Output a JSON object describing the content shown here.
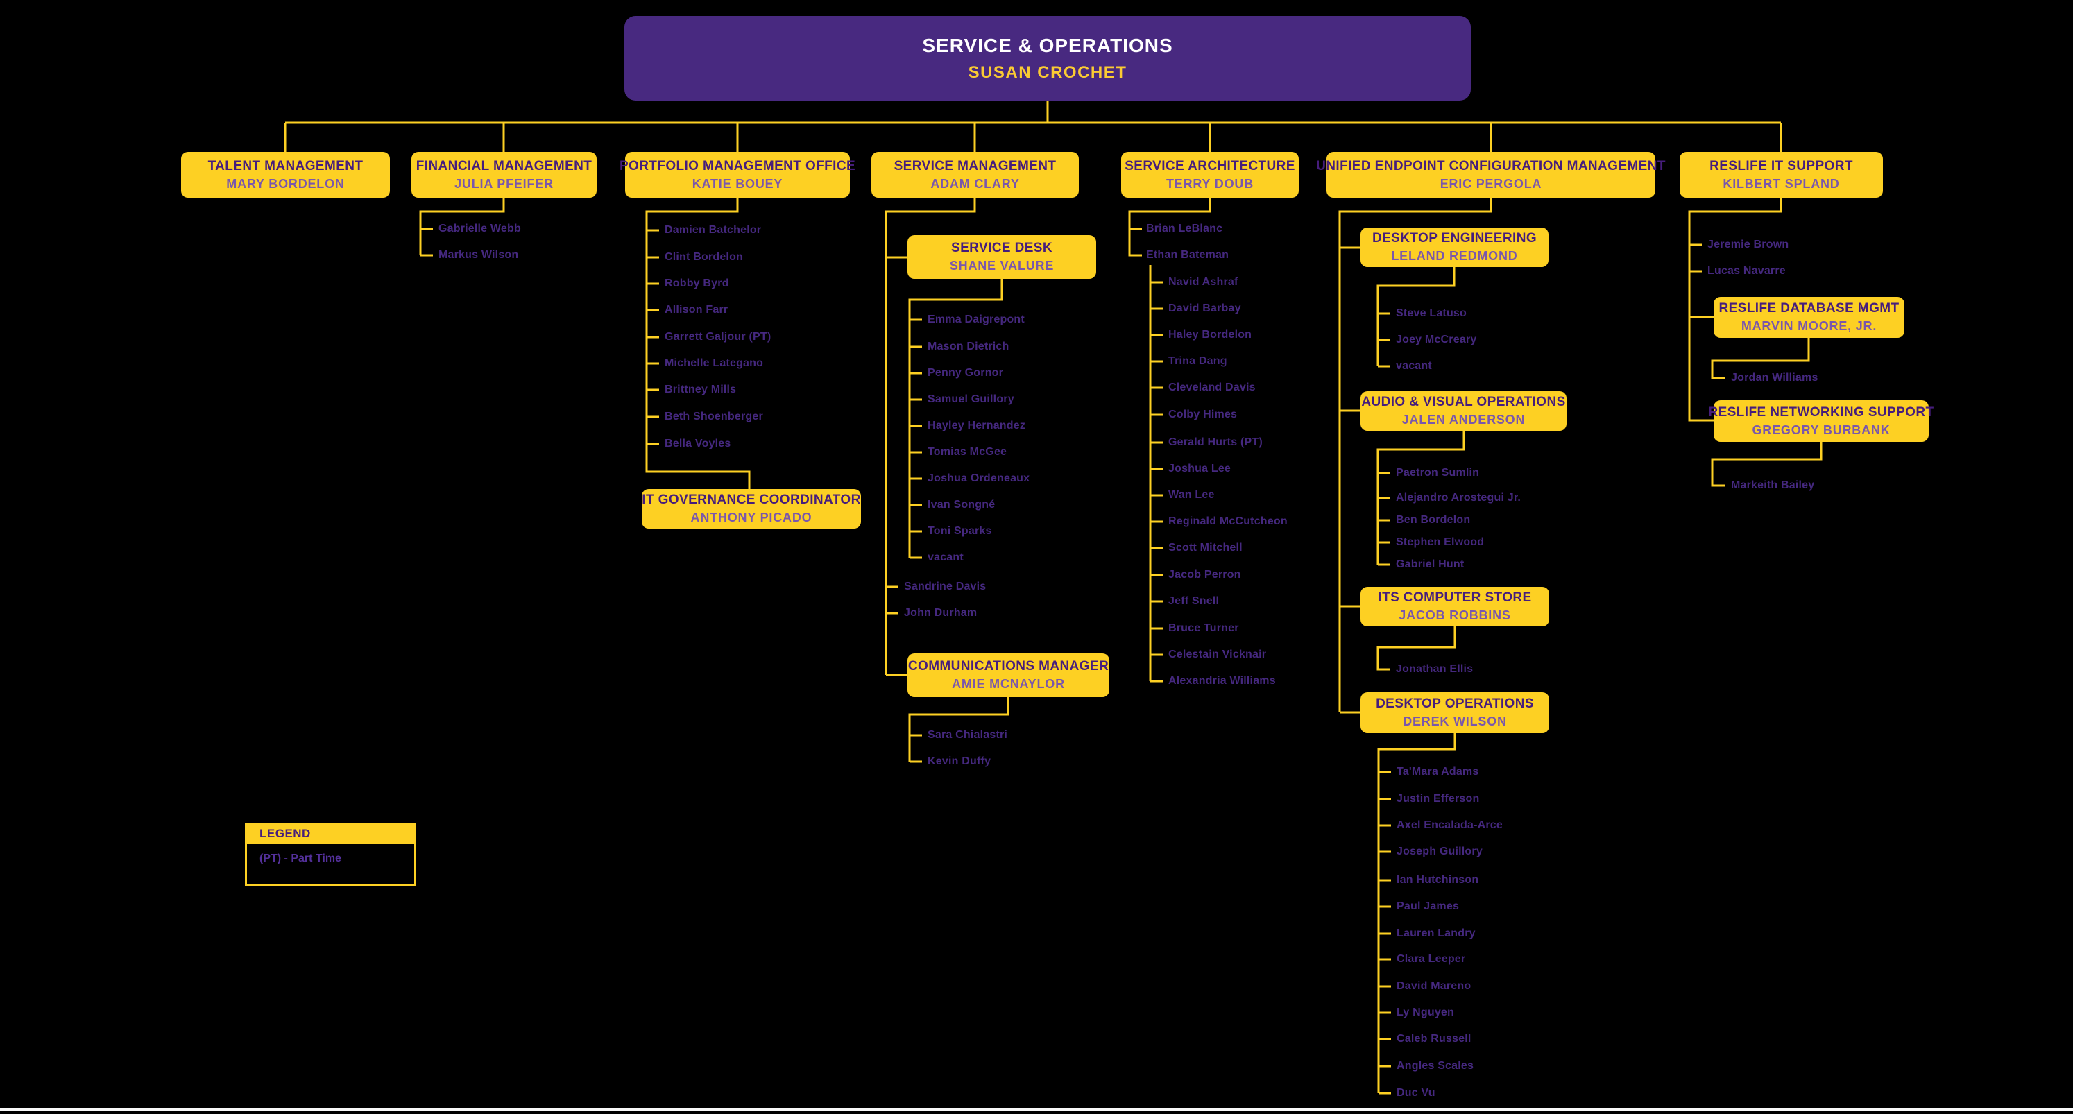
{
  "colors": {
    "background": "#000000",
    "gold": "#FDD023",
    "root_purple": "#482980",
    "box_title_purple": "#461D7C",
    "box_manager_purple": "#7A57AC",
    "staff_name_purple": "#45287F",
    "root_title_white": "#FFFFFF",
    "root_manager_gold": "#FBCB33"
  },
  "root": {
    "title": "SERVICE & OPERATIONS",
    "manager": "SUSAN CROCHET"
  },
  "legend": {
    "title": "LEGEND",
    "items": [
      "(PT) - Part Time"
    ]
  },
  "units": {
    "talent": {
      "title": "TALENT MANAGEMENT",
      "manager": "MARY BORDELON",
      "staff": []
    },
    "financial": {
      "title": "FINANCIAL MANAGEMENT",
      "manager": "JULIA PFEIFER",
      "staff": [
        "Gabrielle Webb",
        "Markus Wilson"
      ]
    },
    "portfolio": {
      "title": "PORTFOLIO MANAGEMENT OFFICE",
      "manager": "KATIE BOUEY",
      "staff": [
        "Damien Batchelor",
        "Clint Bordelon",
        "Robby Byrd",
        "Allison Farr",
        "Garrett Galjour (PT)",
        "Michelle Lategano",
        "Brittney Mills",
        "Beth Shoenberger",
        "Bella Voyles"
      ]
    },
    "it_governance": {
      "title": "IT GOVERNANCE COORDINATOR",
      "manager": "ANTHONY PICADO",
      "staff": []
    },
    "service_mgmt": {
      "title": "SERVICE MANAGEMENT",
      "manager": "ADAM CLARY",
      "staff": [
        "Sandrine Davis",
        "John Durham"
      ]
    },
    "service_desk": {
      "title": "SERVICE DESK",
      "manager": "SHANE VALURE",
      "staff": [
        "Emma Daigrepont",
        "Mason Dietrich",
        "Penny Gornor",
        "Samuel Guillory",
        "Hayley Hernandez",
        "Tomias McGee",
        "Joshua Ordeneaux",
        "Ivan Songné",
        "Toni Sparks",
        "vacant"
      ]
    },
    "comms": {
      "title": "COMMUNICATIONS MANAGER",
      "manager": "AMIE MCNAYLOR",
      "staff": [
        "Sara Chialastri",
        "Kevin Duffy"
      ]
    },
    "service_arch": {
      "title": "SERVICE ARCHITECTURE",
      "manager": "TERRY DOUB",
      "staff": [
        "Brian LeBlanc",
        "Ethan Bateman"
      ]
    },
    "ethan_team": {
      "title": "",
      "manager": "",
      "staff": [
        "Navid Ashraf",
        "David Barbay",
        "Haley Bordelon",
        "Trina Dang",
        "Cleveland Davis",
        "Colby Himes",
        "Gerald Hurts (PT)",
        "Joshua Lee",
        "Wan Lee",
        "Reginald McCutcheon",
        "Scott Mitchell",
        "Jacob Perron",
        "Jeff Snell",
        "Bruce Turner",
        "Celestain Vicknair",
        "Alexandria Williams"
      ]
    },
    "uecm": {
      "title": "UNIFIED ENDPOINT CONFIGURATION MANAGEMENT",
      "manager": "ERIC PERGOLA",
      "staff": []
    },
    "desktop_eng": {
      "title": "DESKTOP ENGINEERING",
      "manager": "LELAND REDMOND",
      "staff": [
        "Steve Latuso",
        "Joey McCreary",
        "vacant"
      ]
    },
    "av_ops": {
      "title": "AUDIO & VISUAL OPERATIONS",
      "manager": "JALEN ANDERSON",
      "staff": [
        "Paetron Sumlin",
        "Alejandro Arostegui Jr.",
        "Ben Bordelon",
        "Stephen Elwood",
        "Gabriel Hunt"
      ]
    },
    "its_store": {
      "title": "ITS COMPUTER STORE",
      "manager": "JACOB ROBBINS",
      "staff": [
        "Jonathan Ellis"
      ]
    },
    "desktop_ops": {
      "title": "DESKTOP OPERATIONS",
      "manager": "DEREK WILSON",
      "staff": [
        "Ta'Mara Adams",
        "Justin Efferson",
        "Axel Encalada-Arce",
        "Joseph Guillory",
        "Ian Hutchinson",
        "Paul James",
        "Lauren Landry",
        "Clara Leeper",
        "David Mareno",
        "Ly Nguyen",
        "Caleb Russell",
        "Angles Scales",
        "Duc Vu"
      ]
    },
    "reslife": {
      "title": "RESLIFE IT SUPPORT",
      "manager": "KILBERT SPLAND",
      "staff": [
        "Jeremie Brown",
        "Lucas Navarre"
      ]
    },
    "reslife_db": {
      "title": "RESLIFE DATABASE MGMT",
      "manager": "MARVIN MOORE, JR.",
      "staff": [
        "Jordan Williams"
      ]
    },
    "reslife_net": {
      "title": "RESLIFE NETWORKING SUPPORT",
      "manager": "GREGORY BURBANK",
      "staff": [
        "Markeith Bailey"
      ]
    }
  }
}
